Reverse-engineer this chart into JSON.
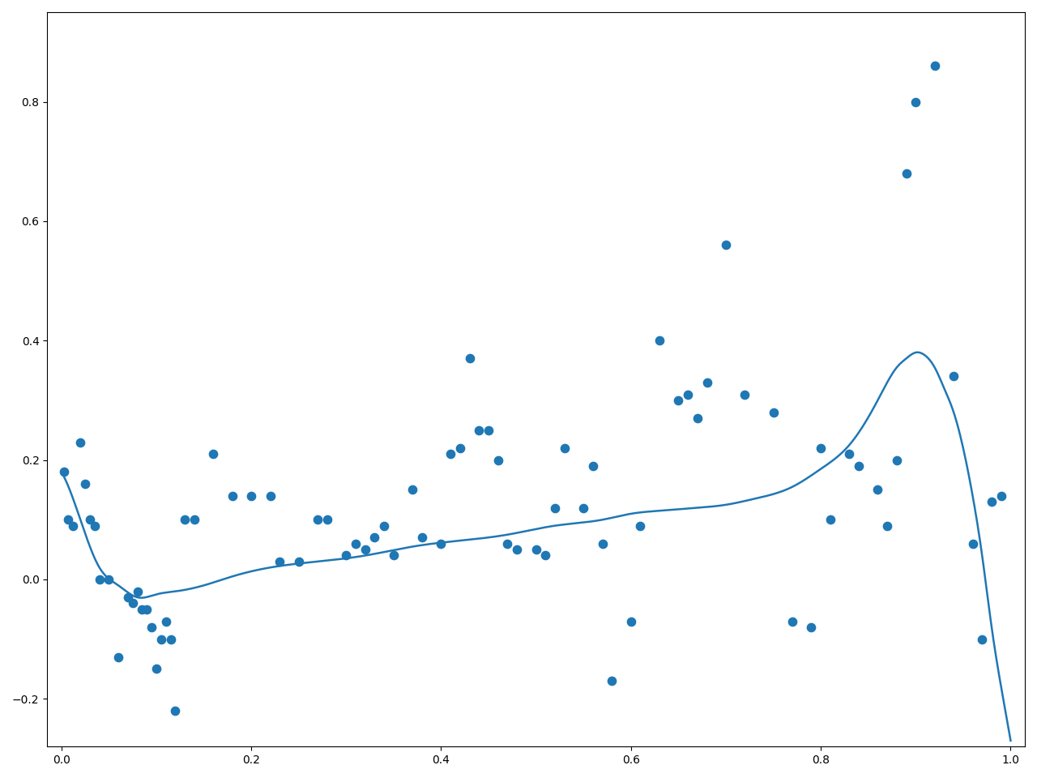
{
  "dot_color": "#1f77b4",
  "line_color": "#1f77b4",
  "dot_size": 55,
  "line_width": 1.8,
  "xlim": [
    -0.015,
    1.015
  ],
  "ylim": [
    -0.28,
    0.95
  ],
  "xticks": [
    0.0,
    0.2,
    0.4,
    0.6,
    0.8,
    1.0
  ],
  "yticks": [
    -0.2,
    0.0,
    0.2,
    0.4,
    0.6,
    0.8
  ],
  "figsize": [
    12.8,
    9.6
  ],
  "dpi": 100,
  "background_color": "#ffffff",
  "scatter_x": [
    0.003,
    0.007,
    0.012,
    0.02,
    0.025,
    0.03,
    0.035,
    0.04,
    0.05,
    0.06,
    0.07,
    0.075,
    0.08,
    0.085,
    0.09,
    0.095,
    0.1,
    0.105,
    0.11,
    0.115,
    0.12,
    0.13,
    0.14,
    0.16,
    0.18,
    0.2,
    0.22,
    0.23,
    0.25,
    0.27,
    0.28,
    0.3,
    0.31,
    0.32,
    0.33,
    0.34,
    0.35,
    0.37,
    0.38,
    0.4,
    0.41,
    0.42,
    0.43,
    0.44,
    0.45,
    0.46,
    0.47,
    0.48,
    0.5,
    0.51,
    0.52,
    0.53,
    0.55,
    0.56,
    0.57,
    0.58,
    0.6,
    0.61,
    0.63,
    0.65,
    0.66,
    0.67,
    0.68,
    0.7,
    0.72,
    0.75,
    0.77,
    0.79,
    0.8,
    0.81,
    0.83,
    0.84,
    0.86,
    0.87,
    0.88,
    0.89,
    0.9,
    0.92,
    0.94,
    0.96,
    0.97,
    0.98,
    0.99
  ],
  "scatter_y": [
    0.18,
    0.1,
    0.09,
    0.23,
    0.16,
    0.1,
    0.09,
    0.0,
    0.0,
    -0.13,
    -0.03,
    -0.04,
    -0.02,
    -0.05,
    -0.05,
    -0.08,
    -0.15,
    -0.1,
    -0.07,
    -0.1,
    -0.22,
    0.1,
    0.1,
    0.21,
    0.14,
    0.14,
    0.14,
    0.03,
    0.03,
    0.1,
    0.1,
    0.04,
    0.06,
    0.05,
    0.07,
    0.09,
    0.04,
    0.15,
    0.07,
    0.06,
    0.21,
    0.22,
    0.37,
    0.25,
    0.25,
    0.2,
    0.06,
    0.05,
    0.05,
    0.04,
    0.12,
    0.22,
    0.12,
    0.19,
    0.06,
    -0.17,
    -0.07,
    0.09,
    0.4,
    0.3,
    0.31,
    0.27,
    0.33,
    0.56,
    0.31,
    0.28,
    -0.07,
    -0.08,
    0.22,
    0.1,
    0.21,
    0.19,
    0.15,
    0.09,
    0.2,
    0.68,
    0.8,
    0.86,
    0.34,
    0.06,
    -0.1,
    0.13,
    0.14
  ],
  "curve_x": [
    0.0,
    0.02,
    0.04,
    0.06,
    0.08,
    0.1,
    0.12,
    0.15,
    0.18,
    0.22,
    0.27,
    0.32,
    0.37,
    0.42,
    0.47,
    0.52,
    0.57,
    0.6,
    0.63,
    0.67,
    0.7,
    0.73,
    0.77,
    0.8,
    0.83,
    0.86,
    0.87,
    0.88,
    0.89,
    0.9,
    0.91,
    0.92,
    0.93,
    0.94,
    0.95,
    0.96,
    0.97,
    0.98,
    0.99,
    1.0
  ],
  "curve_y": [
    0.18,
    0.1,
    0.02,
    -0.01,
    -0.03,
    -0.025,
    -0.02,
    -0.01,
    0.005,
    0.02,
    0.03,
    0.04,
    0.055,
    0.065,
    0.075,
    0.09,
    0.1,
    0.11,
    0.115,
    0.12,
    0.125,
    0.135,
    0.155,
    0.185,
    0.225,
    0.3,
    0.33,
    0.355,
    0.37,
    0.38,
    0.375,
    0.355,
    0.32,
    0.28,
    0.22,
    0.14,
    0.04,
    -0.08,
    -0.18,
    -0.27
  ]
}
